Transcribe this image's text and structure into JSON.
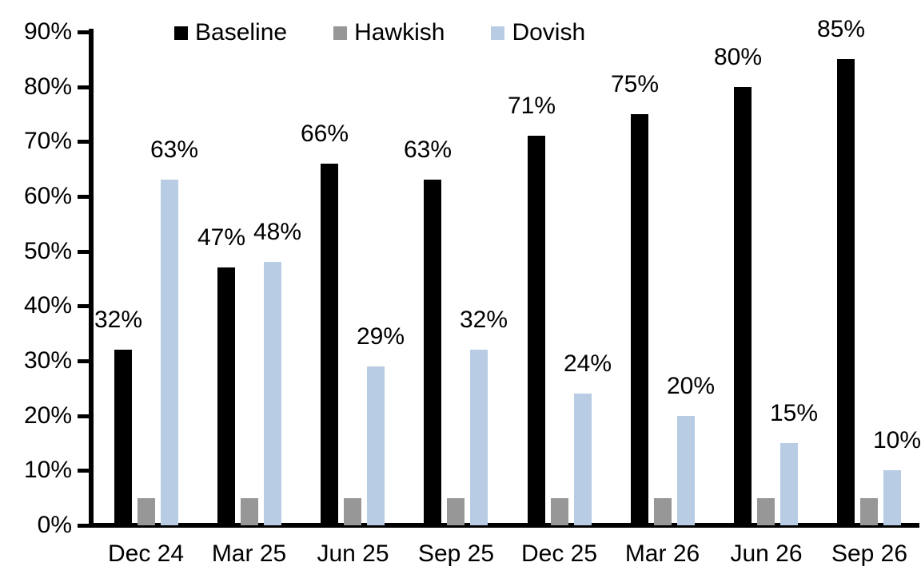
{
  "chart_data": {
    "type": "bar",
    "title": "",
    "xlabel": "",
    "ylabel": "",
    "categories": [
      "Dec 24",
      "Mar 25",
      "Jun 25",
      "Sep 25",
      "Dec 25",
      "Mar 26",
      "Jun 26",
      "Sep 26"
    ],
    "series": [
      {
        "name": "Baseline",
        "color": "#000000",
        "values": [
          32,
          47,
          66,
          63,
          71,
          75,
          80,
          85
        ],
        "data_labels_shown": true
      },
      {
        "name": "Hawkish",
        "color": "#979797",
        "values": [
          5,
          5,
          5,
          5,
          5,
          5,
          5,
          5
        ],
        "data_labels_shown": false
      },
      {
        "name": "Dovish",
        "color": "#B8CCE4",
        "values": [
          63,
          48,
          29,
          32,
          24,
          20,
          15,
          10
        ],
        "data_labels_shown": true
      }
    ],
    "data_label_format": "{v}%",
    "ylim": [
      0,
      90
    ],
    "ytick_step": 10,
    "ytick_labels": [
      "0%",
      "10%",
      "20%",
      "30%",
      "40%",
      "50%",
      "60%",
      "70%",
      "80%",
      "90%"
    ],
    "grid": false,
    "legend_position": "top",
    "axis_color": "#000000",
    "background_color": "#ffffff"
  },
  "legend": {
    "items": [
      {
        "label": "Baseline"
      },
      {
        "label": "Hawkish"
      },
      {
        "label": "Dovish"
      }
    ]
  }
}
